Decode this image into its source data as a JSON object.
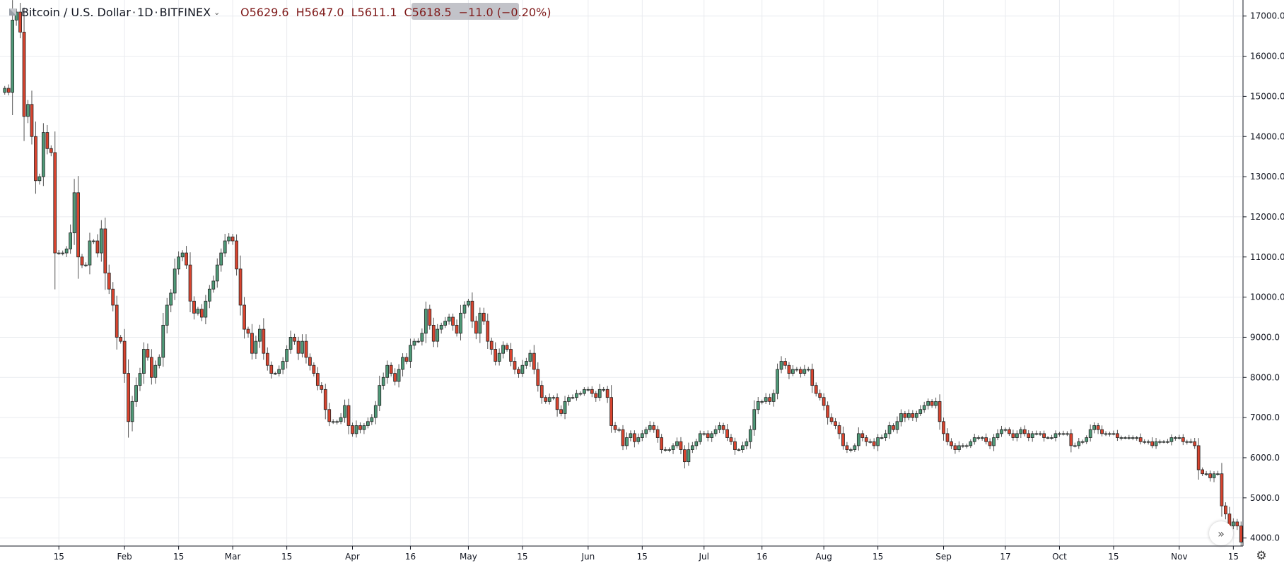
{
  "header": {
    "symbol": "Bitcoin / U.S. Dollar",
    "interval": "1D",
    "exchange": "BITFINEX",
    "open_label": "O",
    "open": "5629.6",
    "high_label": "H",
    "high": "5647.0",
    "low_label": "L",
    "low": "5611.1",
    "close_label": "C",
    "close": "5618.5",
    "change": "−11.0 (−0.20%)"
  },
  "colors": {
    "up": "#53b987",
    "down": "#eb4d5c",
    "up_fill": "#4f9a78",
    "down_fill": "#d9442f",
    "grid": "#e9ebef",
    "axis": "#131722"
  },
  "icons": {
    "scroll_right": "double-chevron-right-icon",
    "settings": "gear-icon",
    "symbol": "candle-icon"
  },
  "chart_data": {
    "type": "candlestick",
    "ylim": [
      3800,
      17400
    ],
    "y_ticks": [
      "4000.0",
      "5000.0",
      "6000.0",
      "7000.0",
      "8000.0",
      "9000.0",
      "10000.0",
      "11000.0",
      "12000.0",
      "13000.0",
      "14000.0",
      "15000.0",
      "16000.0",
      "17000.0"
    ],
    "x_ticks": [
      "15",
      "Feb",
      "15",
      "Mar",
      "15",
      "Apr",
      "16",
      "May",
      "15",
      "Jun",
      "15",
      "Jul",
      "16",
      "Aug",
      "15",
      "Sep",
      "17",
      "Oct",
      "15",
      "Nov",
      "15"
    ],
    "close_series_start": "2018-01-01",
    "closes": [
      15200,
      15100,
      16900,
      17100,
      16600,
      14500,
      14800,
      14000,
      12900,
      13000,
      14100,
      13700,
      13600,
      11100,
      11100,
      11100,
      11200,
      11600,
      12600,
      11000,
      10800,
      10800,
      11400,
      11400,
      11100,
      11700,
      10600,
      10200,
      9800,
      9000,
      8900,
      8100,
      6900,
      7400,
      7800,
      8100,
      8700,
      8500,
      8000,
      8300,
      8500,
      9300,
      9800,
      10100,
      10700,
      11000,
      11100,
      10800,
      9900,
      9600,
      9700,
      9500,
      9900,
      10200,
      10400,
      10800,
      11100,
      11400,
      11500,
      11400,
      10700,
      9800,
      9200,
      9100,
      8600,
      8900,
      9200,
      8600,
      8300,
      8100,
      8100,
      8200,
      8400,
      8700,
      9000,
      8900,
      8600,
      8900,
      8500,
      8300,
      8100,
      7800,
      7700,
      7200,
      6900,
      6900,
      6900,
      7000,
      7300,
      6800,
      6600,
      6800,
      6700,
      6800,
      6900,
      7000,
      7300,
      7800,
      8000,
      8300,
      8100,
      7900,
      8200,
      8500,
      8400,
      8800,
      8900,
      8900,
      9100,
      9700,
      9300,
      8900,
      9200,
      9300,
      9400,
      9500,
      9300,
      9100,
      9600,
      9800,
      9900,
      9400,
      9100,
      9600,
      9400,
      8900,
      8700,
      8400,
      8600,
      8800,
      8700,
      8400,
      8200,
      8100,
      8300,
      8400,
      8600,
      8200,
      7800,
      7500,
      7400,
      7500,
      7500,
      7200,
      7100,
      7400,
      7500,
      7500,
      7600,
      7600,
      7700,
      7700,
      7600,
      7500,
      7700,
      7700,
      7500,
      6800,
      6700,
      6700,
      6300,
      6500,
      6600,
      6400,
      6500,
      6600,
      6700,
      6800,
      6700,
      6500,
      6200,
      6200,
      6200,
      6300,
      6400,
      6200,
      5900,
      6200,
      6300,
      6400,
      6600,
      6600,
      6500,
      6600,
      6700,
      6800,
      6700,
      6500,
      6400,
      6200,
      6200,
      6300,
      6400,
      6700,
      7200,
      7400,
      7400,
      7500,
      7400,
      7600,
      8200,
      8400,
      8300,
      8100,
      8200,
      8200,
      8100,
      8200,
      8200,
      7800,
      7600,
      7500,
      7300,
      7000,
      6900,
      6800,
      6600,
      6300,
      6200,
      6200,
      6300,
      6600,
      6500,
      6400,
      6400,
      6300,
      6500,
      6500,
      6600,
      6800,
      6700,
      6900,
      7100,
      7000,
      7100,
      7000,
      7100,
      7200,
      7300,
      7400,
      7300,
      7400,
      6900,
      6600,
      6400,
      6300,
      6200,
      6300,
      6300,
      6300,
      6400,
      6500,
      6500,
      6500,
      6400,
      6300,
      6500,
      6600,
      6700,
      6700,
      6600,
      6500,
      6600,
      6700,
      6600,
      6500,
      6600,
      6600,
      6600,
      6500,
      6500,
      6500,
      6600,
      6600,
      6600,
      6600,
      6300,
      6300,
      6400,
      6400,
      6500,
      6700,
      6800,
      6700,
      6600,
      6600,
      6600,
      6600,
      6500,
      6500,
      6500,
      6500,
      6500,
      6500,
      6400,
      6400,
      6400,
      6300,
      6400,
      6400,
      6400,
      6400,
      6500,
      6500,
      6500,
      6400,
      6400,
      6400,
      6300,
      5700,
      5600,
      5600,
      5500,
      5600,
      5600,
      4800,
      4600,
      4300,
      4400,
      4300,
      3900
    ]
  }
}
